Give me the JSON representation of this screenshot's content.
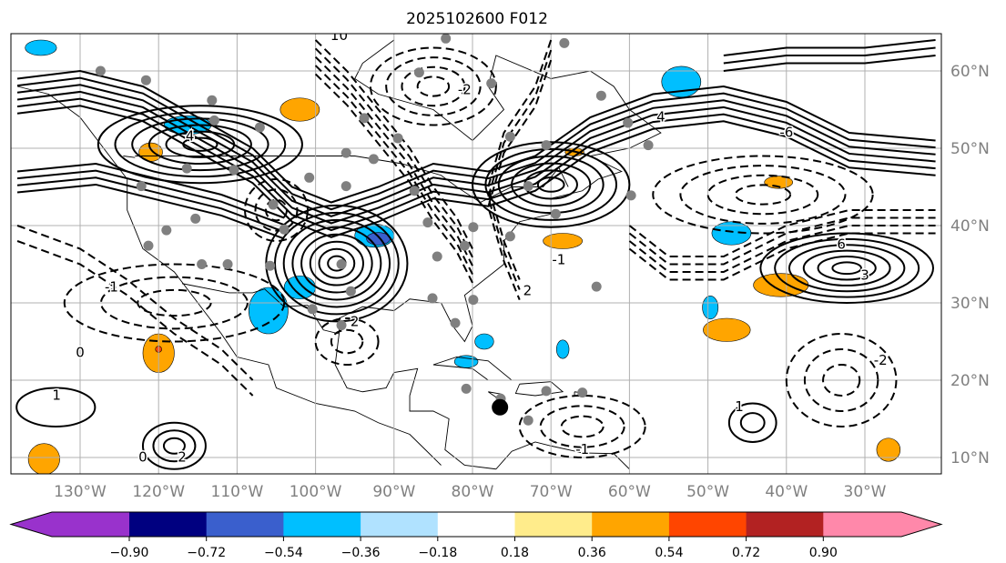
{
  "title": "2025102600 F012",
  "map": {
    "lon_range": [
      -138.8,
      -20.3
    ],
    "lat_range": [
      7.9,
      64.8
    ],
    "lon_ticks": [
      -130,
      -120,
      -110,
      -100,
      -90,
      -80,
      -70,
      -60,
      -50,
      -40,
      -30
    ],
    "lon_tick_labels": [
      "130°W",
      "120°W",
      "110°W",
      "100°W",
      "90°W",
      "80°W",
      "70°W",
      "60°W",
      "50°W",
      "40°W",
      "30°W"
    ],
    "lat_ticks": [
      60,
      50,
      40,
      30,
      20,
      10
    ],
    "lat_tick_labels": [
      "60°N",
      "50°N",
      "40°N",
      "30°N",
      "20°N",
      "10°N"
    ],
    "grid": true
  },
  "colorbar": {
    "levels": [
      "−0.90",
      "−0.72",
      "−0.54",
      "−0.36",
      "−0.18",
      "0.18",
      "0.36",
      "0.54",
      "0.72",
      "0.90"
    ],
    "colors": [
      "#9932cc",
      "#000080",
      "#3a5fcd",
      "#00bfff",
      "#b0e2ff",
      "#ffffff",
      "#ffec8b",
      "#ffa500",
      "#ff4500",
      "#b22222",
      "#ff88aa"
    ],
    "extend": "both"
  },
  "contour_systems": [
    {
      "lon": -97.3,
      "lat": 35.1,
      "rx": 9,
      "ry": 7.5,
      "rings": 8,
      "dashed": false
    },
    {
      "lon": -114.7,
      "lat": 50.5,
      "rx": 13,
      "ry": 5,
      "rings": 6,
      "dashed": false
    },
    {
      "lon": -70,
      "lat": 45.3,
      "rx": 10,
      "ry": 5.5,
      "rings": 6,
      "dashed": false
    },
    {
      "lon": -32.3,
      "lat": 34.5,
      "rx": 11,
      "ry": 4.5,
      "rings": 6,
      "dashed": false
    },
    {
      "lon": -133.1,
      "lat": 16.5,
      "rx": 5,
      "ry": 2.5,
      "rings": 1,
      "dashed": false
    },
    {
      "lon": -118,
      "lat": 11.5,
      "rx": 4,
      "ry": 3,
      "rings": 3,
      "dashed": false
    },
    {
      "lon": -44.3,
      "lat": 14.5,
      "rx": 3,
      "ry": 2.5,
      "rings": 2,
      "dashed": false
    },
    {
      "lon": -85,
      "lat": 58,
      "rx": 8,
      "ry": 5,
      "rings": 4,
      "dashed": true
    },
    {
      "lon": -43,
      "lat": 44,
      "rx": 14,
      "ry": 5,
      "rings": 4,
      "dashed": true
    },
    {
      "lon": -118,
      "lat": 30,
      "rx": 14,
      "ry": 5,
      "rings": 3,
      "dashed": true
    },
    {
      "lon": -66,
      "lat": 14,
      "rx": 8,
      "ry": 4,
      "rings": 3,
      "dashed": true
    },
    {
      "lon": -33,
      "lat": 20,
      "rx": 7,
      "ry": 6,
      "rings": 3,
      "dashed": true
    },
    {
      "lon": -96,
      "lat": 25,
      "rx": 4,
      "ry": 3,
      "rings": 2,
      "dashed": true
    },
    {
      "lon": -105,
      "lat": 42,
      "rx": 4,
      "ry": 4,
      "rings": 3,
      "dashed": true
    }
  ],
  "contour_labels": [
    {
      "text": "4",
      "lon": -116,
      "lat": 51
    },
    {
      "text": "-1",
      "lon": -126,
      "lat": 31.5
    },
    {
      "text": "1",
      "lon": -133,
      "lat": 17.5
    },
    {
      "text": "2",
      "lon": -117,
      "lat": 9.5
    },
    {
      "text": "0",
      "lon": -122,
      "lat": 9.5
    },
    {
      "text": "-6",
      "lon": -40,
      "lat": 51.5
    },
    {
      "text": "6",
      "lon": -33,
      "lat": 37
    },
    {
      "text": "3",
      "lon": -30,
      "lat": 33
    },
    {
      "text": "-2",
      "lon": -81,
      "lat": 57
    },
    {
      "text": "-1",
      "lon": -66,
      "lat": 10.5
    },
    {
      "text": "2",
      "lon": -95,
      "lat": 27
    },
    {
      "text": "1",
      "lon": -46,
      "lat": 16
    },
    {
      "text": "-2",
      "lon": -28,
      "lat": 22
    },
    {
      "text": "-1",
      "lon": -69,
      "lat": 35
    },
    {
      "text": "2",
      "lon": -73,
      "lat": 31
    },
    {
      "text": "0",
      "lon": -130,
      "lat": 23
    },
    {
      "text": "10",
      "lon": -97,
      "lat": 64
    },
    {
      "text": "4",
      "lon": -56,
      "lat": 53.5
    }
  ],
  "shaded_regions": [
    {
      "lon": -53.4,
      "lat": 58.6,
      "rx": 2.5,
      "ry": 2,
      "color": "#00bfff"
    },
    {
      "lon": -47,
      "lat": 39,
      "rx": 2.5,
      "ry": 1.5,
      "color": "#00bfff"
    },
    {
      "lon": -116.3,
      "lat": 53,
      "rx": 3,
      "ry": 1.2,
      "color": "#00bfff"
    },
    {
      "lon": -106,
      "lat": 29,
      "rx": 2.5,
      "ry": 3,
      "color": "#00bfff"
    },
    {
      "lon": -102,
      "lat": 32,
      "rx": 2,
      "ry": 1.5,
      "color": "#00bfff"
    },
    {
      "lon": -92.5,
      "lat": 38.7,
      "rx": 2.5,
      "ry": 1.5,
      "color": "#00bfff"
    },
    {
      "lon": -92,
      "lat": 38.3,
      "rx": 1.5,
      "ry": 0.8,
      "color": "#3a5fcd"
    },
    {
      "lon": -78.5,
      "lat": 25,
      "rx": 1.2,
      "ry": 1,
      "color": "#00bfff"
    },
    {
      "lon": -80.8,
      "lat": 22.4,
      "rx": 1.5,
      "ry": 0.8,
      "color": "#00bfff"
    },
    {
      "lon": -68.5,
      "lat": 24,
      "rx": 0.8,
      "ry": 1.2,
      "color": "#00bfff"
    },
    {
      "lon": -49.7,
      "lat": 29.4,
      "rx": 1,
      "ry": 1.5,
      "color": "#00bfff"
    },
    {
      "lon": -135,
      "lat": 63,
      "rx": 2,
      "ry": 1,
      "color": "#00bfff"
    },
    {
      "lon": -102,
      "lat": 55,
      "rx": 2.5,
      "ry": 1.5,
      "color": "#ffa500"
    },
    {
      "lon": -120,
      "lat": 23.5,
      "rx": 2,
      "ry": 2.5,
      "color": "#ffa500"
    },
    {
      "lon": -120,
      "lat": 24,
      "rx": 0.4,
      "ry": 0.4,
      "color": "#ff4500"
    },
    {
      "lon": -121,
      "lat": 49.5,
      "rx": 1.5,
      "ry": 1.2,
      "color": "#ffa500"
    },
    {
      "lon": -134.6,
      "lat": 9.8,
      "rx": 2,
      "ry": 2,
      "color": "#ffa500"
    },
    {
      "lon": -47.6,
      "lat": 26.5,
      "rx": 3,
      "ry": 1.5,
      "color": "#ffa500"
    },
    {
      "lon": -40.7,
      "lat": 32.3,
      "rx": 3.5,
      "ry": 1.5,
      "color": "#ffa500"
    },
    {
      "lon": -68.5,
      "lat": 38,
      "rx": 2.5,
      "ry": 1,
      "color": "#ffa500"
    },
    {
      "lon": -41,
      "lat": 45.6,
      "rx": 1.8,
      "ry": 0.8,
      "color": "#ffa500"
    },
    {
      "lon": -27,
      "lat": 11,
      "rx": 1.5,
      "ry": 1.5,
      "color": "#ffa500"
    },
    {
      "lon": -67,
      "lat": 49.5,
      "rx": 1.2,
      "ry": 0.5,
      "color": "#ffa500"
    }
  ],
  "station_dots": [
    [
      -127.4,
      60
    ],
    [
      -121.6,
      58.8
    ],
    [
      -112.9,
      53.6
    ],
    [
      -107.1,
      52.7
    ],
    [
      -110.4,
      47.2
    ],
    [
      -115.3,
      40.9
    ],
    [
      -119,
      39.4
    ],
    [
      -121.3,
      37.4
    ],
    [
      -114.5,
      35
    ],
    [
      -111.2,
      35
    ],
    [
      -105.8,
      34.8
    ],
    [
      -104,
      39.5
    ],
    [
      -100.8,
      46.2
    ],
    [
      -96.1,
      49.4
    ],
    [
      -96.1,
      45.1
    ],
    [
      -92.6,
      48.6
    ],
    [
      -89.5,
      51.3
    ],
    [
      -87.4,
      44.5
    ],
    [
      -85.7,
      40.4
    ],
    [
      -84.5,
      36
    ],
    [
      -81,
      37.4
    ],
    [
      -79.9,
      39.8
    ],
    [
      -77.6,
      58.4
    ],
    [
      -75.2,
      51.5
    ],
    [
      -70.6,
      50.4
    ],
    [
      -68.3,
      63.6
    ],
    [
      -63.6,
      56.8
    ],
    [
      -60.2,
      53.3
    ],
    [
      -57.6,
      50.4
    ],
    [
      -59.8,
      43.9
    ],
    [
      -69.4,
      41.5
    ],
    [
      -72.9,
      45.1
    ],
    [
      -75.2,
      38.6
    ],
    [
      -79.9,
      30.4
    ],
    [
      -82.2,
      27.4
    ],
    [
      -85.1,
      30.6
    ],
    [
      -96.7,
      35
    ],
    [
      -95.5,
      31.5
    ],
    [
      -100.4,
      29.2
    ],
    [
      -96.7,
      27.1
    ],
    [
      -64.2,
      32.1
    ],
    [
      -76.4,
      17.6
    ],
    [
      -80.8,
      18.9
    ],
    [
      -70.6,
      18.6
    ],
    [
      -66,
      18.4
    ],
    [
      -72.9,
      14.8
    ],
    [
      -83.4,
      64.2
    ],
    [
      -86.8,
      59.8
    ],
    [
      -93.8,
      53.9
    ],
    [
      -113.2,
      56.2
    ],
    [
      -116.4,
      47.4
    ],
    [
      -122.2,
      45.1
    ],
    [
      -105.4,
      42.7
    ]
  ],
  "marker": {
    "lon": -76.5,
    "lat": 16.5
  }
}
